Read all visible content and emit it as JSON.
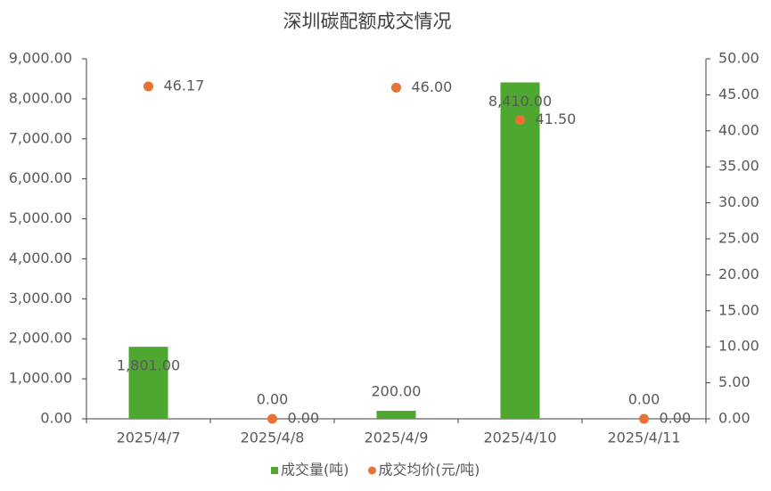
{
  "chart_data": {
    "type": "combo",
    "title": "深圳碳配额成交情况",
    "categories": [
      "2025/4/7",
      "2025/4/8",
      "2025/4/9",
      "2025/4/10",
      "2025/4/11"
    ],
    "series": [
      {
        "name": "成交量(吨)",
        "type": "bar",
        "color": "#4ea72e",
        "values": [
          1801,
          0,
          200,
          8410,
          0
        ],
        "value_labels": [
          "1,801.00",
          "0.00",
          "200.00",
          "8,410.00",
          "0.00"
        ]
      },
      {
        "name": "成交均价(元/吨)",
        "type": "scatter",
        "axis": "y2",
        "color": "#e97132",
        "values": [
          46.17,
          0,
          46,
          41.5,
          0
        ],
        "value_labels": [
          "46.17",
          "0.00",
          "46.00",
          "41.50",
          "0.00"
        ]
      }
    ],
    "ylim": [
      0,
      9000
    ],
    "yticks": [
      {
        "value": 0,
        "label": "0.00"
      },
      {
        "value": 1000,
        "label": "1,000.00"
      },
      {
        "value": 2000,
        "label": "2,000.00"
      },
      {
        "value": 3000,
        "label": "3,000.00"
      },
      {
        "value": 4000,
        "label": "4,000.00"
      },
      {
        "value": 5000,
        "label": "5,000.00"
      },
      {
        "value": 6000,
        "label": "6,000.00"
      },
      {
        "value": 7000,
        "label": "7,000.00"
      },
      {
        "value": 8000,
        "label": "8,000.00"
      },
      {
        "value": 9000,
        "label": "9,000.00"
      }
    ],
    "y2lim": [
      0,
      50
    ],
    "y2ticks": [
      {
        "value": 0,
        "label": "0.00"
      },
      {
        "value": 5,
        "label": "5.00"
      },
      {
        "value": 10,
        "label": "10.00"
      },
      {
        "value": 15,
        "label": "15.00"
      },
      {
        "value": 20,
        "label": "20.00"
      },
      {
        "value": 25,
        "label": "25.00"
      },
      {
        "value": 30,
        "label": "30.00"
      },
      {
        "value": 35,
        "label": "35.00"
      },
      {
        "value": 40,
        "label": "40.00"
      },
      {
        "value": 45,
        "label": "45.00"
      },
      {
        "value": 50,
        "label": "50.00"
      }
    ],
    "legend": "bottom",
    "grid": false
  }
}
